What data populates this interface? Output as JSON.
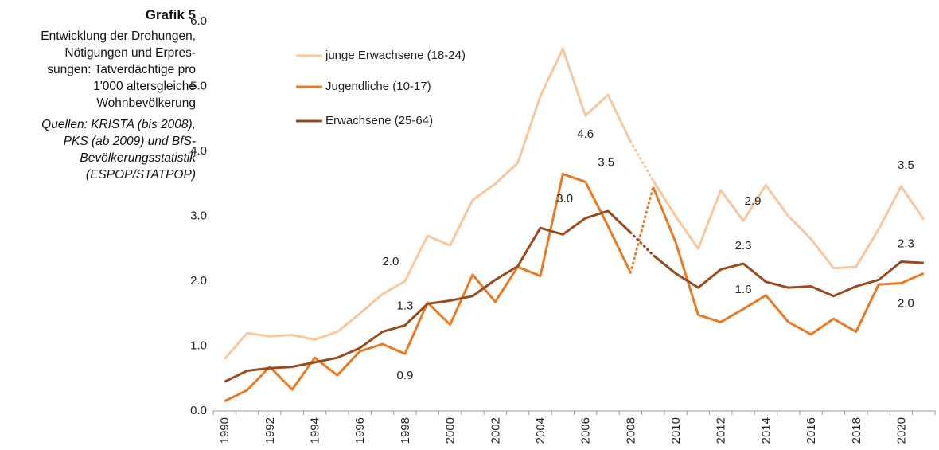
{
  "chart_data": {
    "type": "line",
    "title": "Grafik 5",
    "subtitle": [
      "Entwicklung der Drohungen,",
      "Nötigungen und Erpres-",
      "sungen: Tatverdächtige pro",
      "1'000 altersgleiche",
      "Wohnbevölkerung"
    ],
    "source": [
      "Quellen: KRISTA (bis 2008),",
      "PKS (ab 2009) und BfS-",
      "Bevölkerungsstatistik",
      "(ESPOP/STATPOP)"
    ],
    "categories": [
      "1990",
      null,
      "1992",
      null,
      "1994",
      null,
      "1996",
      null,
      "1998",
      null,
      "2000",
      null,
      "2002",
      null,
      "2004",
      null,
      "2006",
      null,
      "2008",
      null,
      "2010",
      null,
      "2012",
      null,
      "2014",
      null,
      "2016",
      null,
      "2018",
      null,
      "2020",
      null
    ],
    "ylim": [
      0,
      6
    ],
    "yticks": [
      {
        "value": 0,
        "label": "0.0"
      },
      {
        "value": 1,
        "label": "1.0"
      },
      {
        "value": 2,
        "label": "2.0"
      },
      {
        "value": 3,
        "label": "3.0"
      },
      {
        "value": 4,
        "label": "4.0"
      },
      {
        "value": 5,
        "label": "5.0"
      },
      {
        "value": 6,
        "label": "6.0"
      }
    ],
    "dotted_segment": [
      18,
      19
    ],
    "legend": "top-left",
    "series": [
      {
        "name": "junge Erwachsene (18-24)",
        "color": "#f8c79d",
        "values": [
          0.8,
          1.2,
          1.15,
          1.17,
          1.1,
          1.22,
          1.5,
          1.8,
          2.0,
          2.7,
          2.55,
          3.25,
          3.5,
          3.82,
          4.85,
          5.58,
          4.55,
          4.87,
          4.15,
          3.55,
          3.0,
          2.5,
          3.4,
          2.93,
          3.48,
          3.0,
          2.65,
          2.2,
          2.22,
          2.8,
          3.46,
          2.95
        ],
        "value_labels": [
          null,
          null,
          null,
          null,
          null,
          null,
          null,
          null,
          "2.0",
          null,
          null,
          null,
          null,
          null,
          null,
          null,
          "4.6",
          null,
          null,
          null,
          null,
          null,
          null,
          "2.9",
          null,
          null,
          null,
          null,
          null,
          null,
          "3.5",
          null
        ]
      },
      {
        "name": "Jugendliche (10-17)",
        "color": "#e87a24",
        "values": [
          0.15,
          0.32,
          0.68,
          0.33,
          0.82,
          0.55,
          0.92,
          1.03,
          0.88,
          1.67,
          1.33,
          2.1,
          1.68,
          2.22,
          2.08,
          3.65,
          3.53,
          2.85,
          2.13,
          3.45,
          2.6,
          1.48,
          1.37,
          1.57,
          1.78,
          1.37,
          1.18,
          1.42,
          1.22,
          1.95,
          1.97,
          2.12
        ],
        "value_labels": [
          null,
          null,
          null,
          null,
          null,
          null,
          null,
          null,
          "0.9",
          null,
          null,
          null,
          null,
          null,
          null,
          null,
          "3.5",
          null,
          null,
          null,
          null,
          null,
          null,
          "1.6",
          null,
          null,
          null,
          null,
          null,
          null,
          "2.0",
          null
        ]
      },
      {
        "name": "Erwachsene (25-64)",
        "color": "#9a4a1c",
        "values": [
          0.45,
          0.62,
          0.66,
          0.68,
          0.75,
          0.82,
          0.97,
          1.22,
          1.32,
          1.65,
          1.7,
          1.77,
          2.02,
          2.23,
          2.82,
          2.72,
          2.97,
          3.08,
          2.75,
          2.4,
          2.12,
          1.9,
          2.18,
          2.27,
          1.99,
          1.9,
          1.92,
          1.77,
          1.92,
          2.02,
          2.3,
          2.28
        ],
        "value_labels": [
          null,
          null,
          null,
          null,
          null,
          null,
          null,
          null,
          "1.3",
          null,
          null,
          null,
          null,
          null,
          null,
          null,
          "3.0",
          null,
          null,
          null,
          null,
          null,
          null,
          "2.3",
          null,
          null,
          null,
          null,
          null,
          null,
          "2.3",
          null
        ]
      }
    ]
  }
}
